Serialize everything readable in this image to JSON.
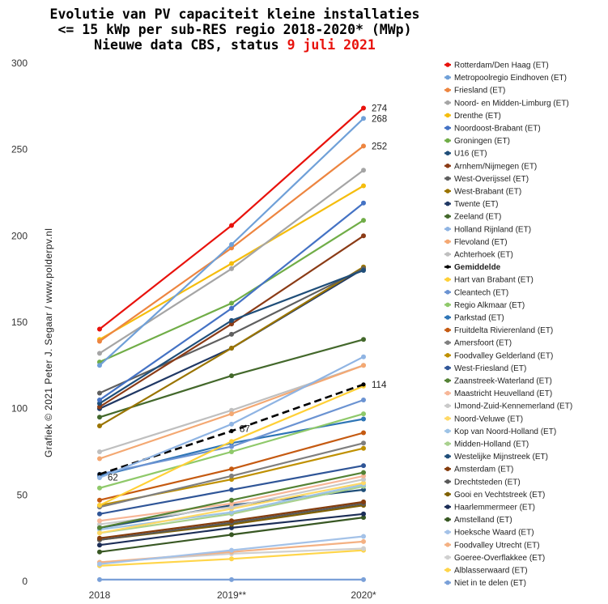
{
  "title": {
    "line1": "Evolutie van PV capaciteit kleine installaties",
    "line2": "<= 15 kWp per sub-RES regio 2018-2020* (MWp)",
    "line3_prefix": "Nieuwe data CBS, status ",
    "line3_date": "9 juli  2021"
  },
  "credit": "Grafiek © 2021 Peter J. Segaar / www.polderpv.nl",
  "chart_data": {
    "type": "line",
    "title": "Evolutie van PV capaciteit kleine installaties <= 15 kWp per sub-RES regio 2018-2020* (MWp)",
    "categories": [
      "2018",
      "2019**",
      "2020*"
    ],
    "ylim": [
      0,
      300
    ],
    "yticks": [
      0,
      50,
      100,
      150,
      200,
      250,
      300
    ],
    "grid": false,
    "legend": "right",
    "series": [
      {
        "name": "Rotterdam/Den Haag (ET)",
        "values": [
          146,
          206,
          274
        ],
        "color": "#e8120c",
        "end_label": "274"
      },
      {
        "name": "Metropoolregio Eindhoven (ET)",
        "values": [
          125,
          195,
          268
        ],
        "color": "#6fa0d8",
        "end_label": "268"
      },
      {
        "name": "Friesland (ET)",
        "values": [
          139,
          193,
          252
        ],
        "color": "#ed8540",
        "end_label": "252"
      },
      {
        "name": "Noord- en Midden-Limburg (ET)",
        "values": [
          132,
          181,
          238
        ],
        "color": "#a5a5a5"
      },
      {
        "name": "Drenthe (ET)",
        "values": [
          140,
          184,
          229
        ],
        "color": "#f5bd0d"
      },
      {
        "name": "Noordoost-Brabant (ET)",
        "values": [
          105,
          158,
          219
        ],
        "color": "#4472c4"
      },
      {
        "name": "Groningen (ET)",
        "values": [
          127,
          161,
          209
        ],
        "color": "#70ad47"
      },
      {
        "name": "U16 (ET)",
        "values": [
          103,
          151,
          180
        ],
        "color": "#1f4e79"
      },
      {
        "name": "Arnhem/Nijmegen (ET)",
        "values": [
          101,
          149,
          200
        ],
        "color": "#8b3b16"
      },
      {
        "name": "West-Overijssel (ET)",
        "values": [
          109,
          143,
          181
        ],
        "color": "#5f5f5f"
      },
      {
        "name": "West-Brabant (ET)",
        "values": [
          90,
          135,
          182
        ],
        "color": "#9a7400"
      },
      {
        "name": "Twente (ET)",
        "values": [
          100,
          135,
          181
        ],
        "color": "#203864"
      },
      {
        "name": "Zeeland (ET)",
        "values": [
          95,
          119,
          140
        ],
        "color": "#43682b"
      },
      {
        "name": "Holland Rijnland (ET)",
        "values": [
          60,
          91,
          130
        ],
        "color": "#8fb4e3"
      },
      {
        "name": "Flevoland (ET)",
        "values": [
          71,
          97,
          125
        ],
        "color": "#f4a872"
      },
      {
        "name": "Achterhoek (ET)",
        "values": [
          75,
          99,
          125
        ],
        "color": "#bfbfbf"
      },
      {
        "name": "Gemiddelde",
        "values": [
          62,
          87,
          114
        ],
        "color": "#000000",
        "dashed": true,
        "end_label": "114",
        "start_label": "62",
        "mid_label": "87"
      },
      {
        "name": "Hart van Brabant (ET)",
        "values": [
          44,
          81,
          113
        ],
        "color": "#ffd036"
      },
      {
        "name": "Cleantech (ET)",
        "values": [
          62,
          78,
          105
        ],
        "color": "#6b93d2"
      },
      {
        "name": "Regio Alkmaar (ET)",
        "values": [
          54,
          75,
          97
        ],
        "color": "#8fc96a"
      },
      {
        "name": "Parkstad (ET)",
        "values": [
          61,
          80,
          94
        ],
        "color": "#2e75b6"
      },
      {
        "name": "Fruitdelta Rivierenland (ET)",
        "values": [
          47,
          65,
          86
        ],
        "color": "#c55a11"
      },
      {
        "name": "Amersfoort (ET)",
        "values": [
          43,
          61,
          80
        ],
        "color": "#7f7f7f"
      },
      {
        "name": "Foodvalley Gelderland (ET)",
        "values": [
          44,
          59,
          77
        ],
        "color": "#bf9000"
      },
      {
        "name": "West-Friesland (ET)",
        "values": [
          39,
          53,
          67
        ],
        "color": "#2f5597"
      },
      {
        "name": "Zaanstreek-Waterland (ET)",
        "values": [
          31,
          47,
          63
        ],
        "color": "#548235"
      },
      {
        "name": "Maastricht Heuvelland (ET)",
        "values": [
          35,
          45,
          61
        ],
        "color": "#f7b697"
      },
      {
        "name": "IJmond-Zuid-Kennemerland (ET)",
        "values": [
          33,
          43,
          59
        ],
        "color": "#c9c9c9"
      },
      {
        "name": "Noord-Veluwe (ET)",
        "values": [
          28,
          42,
          57
        ],
        "color": "#ffd966"
      },
      {
        "name": "Kop van Noord-Holland (ET)",
        "values": [
          30,
          40,
          56
        ],
        "color": "#9dc3e6"
      },
      {
        "name": "Midden-Holland (ET)",
        "values": [
          28,
          39,
          55
        ],
        "color": "#a9d18e"
      },
      {
        "name": "Westelijke Mijnstreek (ET)",
        "values": [
          31,
          44,
          53
        ],
        "color": "#1f4e79"
      },
      {
        "name": "Amsterdam (ET)",
        "values": [
          25,
          35,
          46
        ],
        "color": "#843c0c"
      },
      {
        "name": "Drechtsteden (ET)",
        "values": [
          24,
          34,
          45
        ],
        "color": "#595959"
      },
      {
        "name": "Gooi en Vechtstreek (ET)",
        "values": [
          24,
          33,
          44
        ],
        "color": "#7f6000"
      },
      {
        "name": "Haarlemmermeer (ET)",
        "values": [
          21,
          31,
          39
        ],
        "color": "#1c2e57"
      },
      {
        "name": "Amstelland (ET)",
        "values": [
          17,
          27,
          37
        ],
        "color": "#385723"
      },
      {
        "name": "Hoeksche Waard (ET)",
        "values": [
          10,
          18,
          26
        ],
        "color": "#a4c2e8"
      },
      {
        "name": "Foodvalley Utrecht (ET)",
        "values": [
          11,
          17,
          23
        ],
        "color": "#f4b183"
      },
      {
        "name": "Goeree-Overflakkee (ET)",
        "values": [
          11,
          16,
          19
        ],
        "color": "#d0d0d0"
      },
      {
        "name": "Alblasserwaard (ET)",
        "values": [
          9,
          13,
          18
        ],
        "color": "#ffd54a"
      },
      {
        "name": "Niet in te delen (ET)",
        "values": [
          1,
          1,
          1
        ],
        "color": "#7aa0d8"
      }
    ]
  }
}
